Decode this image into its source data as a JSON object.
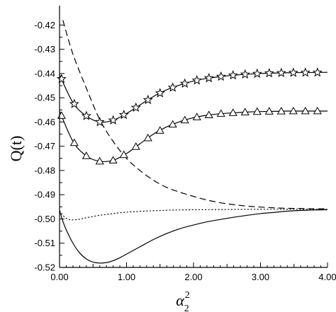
{
  "chart_data": {
    "type": "line",
    "title": "",
    "xlabel": "α",
    "xlabel_superscript": "2",
    "xlabel_subscript": "2",
    "ylabel": "Q(t)",
    "xlim": [
      0,
      4
    ],
    "ylim": [
      -0.52,
      -0.412
    ],
    "grid": false,
    "x_ticks": [
      0,
      1,
      2,
      3,
      4
    ],
    "x_tick_labels": [
      "0.00",
      "1.00",
      "2.00",
      "3.00",
      "4.00"
    ],
    "y_ticks": [
      -0.42,
      -0.43,
      -0.44,
      -0.45,
      -0.46,
      -0.47,
      -0.48,
      -0.49,
      -0.5,
      -0.51,
      -0.52
    ],
    "y_tick_labels": [
      "-0.42",
      "-0.43",
      "-0.44",
      "-0.45",
      "-0.46",
      "-0.47",
      "-0.48",
      "-0.49",
      "-0.50",
      "-0.51",
      "-0.52"
    ],
    "series": [
      {
        "style": "solid",
        "marker": "star",
        "x": [
          0.0,
          0.2,
          0.4,
          0.6,
          0.8,
          1.0,
          1.2,
          1.4,
          1.6,
          1.8,
          2.0,
          2.2,
          2.4,
          2.6,
          2.8,
          3.0,
          3.2,
          3.4,
          3.6,
          3.8,
          4.0
        ],
        "y": [
          -0.4405,
          -0.452,
          -0.4575,
          -0.46,
          -0.4593,
          -0.4565,
          -0.453,
          -0.4495,
          -0.4467,
          -0.4447,
          -0.4431,
          -0.442,
          -0.4413,
          -0.4407,
          -0.4403,
          -0.44,
          -0.4398,
          -0.4397,
          -0.4396,
          -0.4396,
          -0.4395
        ],
        "marker_x": [
          0.03,
          0.22,
          0.4,
          0.6,
          0.8,
          0.96,
          1.14,
          1.32,
          1.5,
          1.69,
          1.87,
          2.05,
          2.23,
          2.41,
          2.59,
          2.77,
          2.95,
          3.13,
          3.31,
          3.49,
          3.67,
          3.85
        ]
      },
      {
        "style": "solid",
        "marker": "triangle",
        "x": [
          0.0,
          0.2,
          0.4,
          0.6,
          0.8,
          1.0,
          1.2,
          1.4,
          1.6,
          1.8,
          2.0,
          2.2,
          2.4,
          2.6,
          2.8,
          3.0,
          3.2,
          3.4,
          3.6,
          3.8,
          4.0
        ],
        "y": [
          -0.4555,
          -0.468,
          -0.474,
          -0.4762,
          -0.4758,
          -0.473,
          -0.469,
          -0.465,
          -0.462,
          -0.4598,
          -0.4582,
          -0.4572,
          -0.4566,
          -0.4562,
          -0.4559,
          -0.4557,
          -0.4556,
          -0.4555,
          -0.4555,
          -0.4555,
          -0.4555
        ],
        "marker_x": [
          0.03,
          0.22,
          0.4,
          0.6,
          0.8,
          0.96,
          1.14,
          1.32,
          1.5,
          1.69,
          1.87,
          2.05,
          2.23,
          2.41,
          2.59,
          2.77,
          2.95,
          3.13,
          3.31,
          3.49,
          3.67,
          3.85
        ]
      },
      {
        "style": "dashed",
        "marker": "none",
        "x": [
          0.05,
          0.2,
          0.4,
          0.6,
          0.8,
          1.0,
          1.2,
          1.4,
          1.6,
          1.8,
          2.0,
          2.2,
          2.4,
          2.6,
          2.8,
          3.0,
          3.2,
          3.4,
          3.6,
          3.8,
          4.0
        ],
        "y": [
          -0.418,
          -0.432,
          -0.446,
          -0.459,
          -0.468,
          -0.475,
          -0.48,
          -0.484,
          -0.487,
          -0.489,
          -0.4907,
          -0.4922,
          -0.4933,
          -0.4941,
          -0.4947,
          -0.4951,
          -0.4954,
          -0.4956,
          -0.4957,
          -0.4958,
          -0.4958
        ]
      },
      {
        "style": "dotted",
        "marker": "none",
        "x": [
          0.0,
          0.05,
          0.1,
          0.15,
          0.2,
          0.3,
          0.4,
          0.6,
          0.8,
          1.0,
          1.5,
          2.0,
          2.5,
          3.0,
          3.5,
          4.0
        ],
        "y": [
          -0.4965,
          -0.4985,
          -0.4997,
          -0.5003,
          -0.5004,
          -0.5001,
          -0.4995,
          -0.4985,
          -0.4978,
          -0.4972,
          -0.4965,
          -0.4962,
          -0.4961,
          -0.496,
          -0.496,
          -0.496
        ]
      },
      {
        "style": "solid",
        "marker": "none",
        "x": [
          0.0,
          0.05,
          0.1,
          0.2,
          0.3,
          0.4,
          0.5,
          0.6,
          0.7,
          0.8,
          0.9,
          1.0,
          1.2,
          1.4,
          1.6,
          1.8,
          2.0,
          2.2,
          2.4,
          2.6,
          2.8,
          3.0,
          3.2,
          3.4,
          3.6,
          3.8,
          4.0
        ],
        "y": [
          -0.4965,
          -0.501,
          -0.5045,
          -0.51,
          -0.514,
          -0.5165,
          -0.5178,
          -0.5182,
          -0.518,
          -0.5172,
          -0.516,
          -0.5145,
          -0.5115,
          -0.5085,
          -0.506,
          -0.504,
          -0.5025,
          -0.5012,
          -0.5002,
          -0.4993,
          -0.4985,
          -0.4978,
          -0.4973,
          -0.4968,
          -0.4965,
          -0.4963,
          -0.4962
        ]
      }
    ]
  }
}
